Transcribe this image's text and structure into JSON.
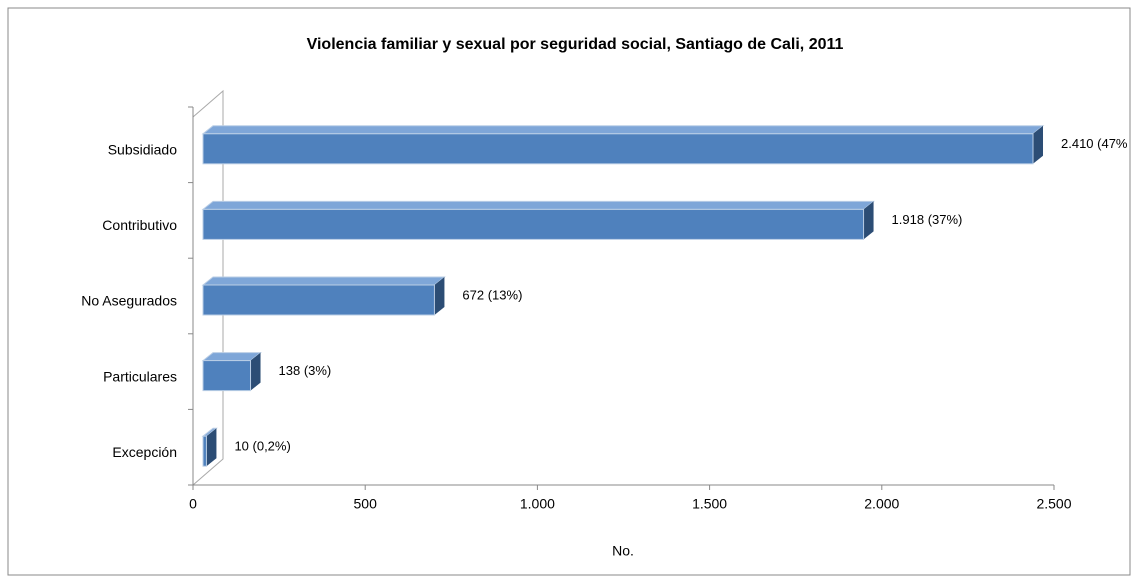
{
  "chart_data": {
    "type": "bar",
    "orientation": "horizontal",
    "title": "Violencia familiar y sexual por seguridad social, Santiago de Cali, 2011",
    "categories": [
      "Subsidiado",
      "Contributivo",
      "No Asegurados",
      "Particulares",
      "Excepción"
    ],
    "values": [
      2410,
      1918,
      672,
      138,
      10
    ],
    "value_labels": [
      "2.410 (47%",
      "1.918 (37%)",
      "672 (13%)",
      "138 (3%)",
      "10 (0,2%)"
    ],
    "color": "#4f81bd",
    "xlim": [
      0,
      2500
    ],
    "xticks": [
      0,
      500,
      {
        "value": 1000,
        "label": "1.000"
      },
      {
        "value": 1500,
        "label": "1.500"
      },
      {
        "value": 2000,
        "label": "2.000"
      },
      {
        "value": 2500,
        "label": "2.500"
      }
    ],
    "xlabel": "No."
  }
}
